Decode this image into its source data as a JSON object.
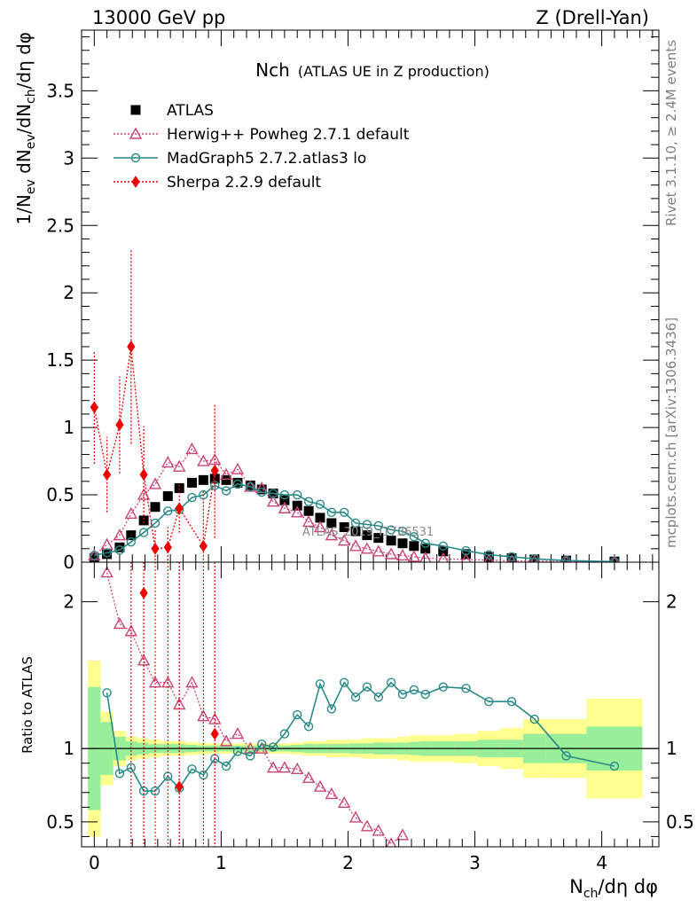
{
  "header": {
    "left": "13000 GeV pp",
    "right": "Z (Drell-Yan)"
  },
  "side_labels": {
    "rivet": "Rivet 3.1.10, ≥ 2.4M events",
    "mcplots": "mcplots.cern.ch [arXiv:1306.3436]"
  },
  "watermark": "ATLAS_2019_I1736531",
  "chart_data": [
    {
      "type": "scatter",
      "panel": "main",
      "title_main": "Nch",
      "title_sub": "(ATLAS UE in Z production)",
      "ylabel": "1/N_ev dN_ev/dN_ch/dη dφ",
      "xlim": [
        -0.1,
        4.45
      ],
      "ylim": [
        0,
        3.95
      ],
      "yticks": [
        0,
        0.5,
        1,
        1.5,
        2,
        2.5,
        3,
        3.5
      ],
      "ytick_labels": [
        "0",
        "0.5",
        "1",
        "1.5",
        "2",
        "2.5",
        "3",
        "3.5"
      ],
      "legend_position": "top-left",
      "series": [
        {
          "name": "ATLAS",
          "color": "#000000",
          "x": [
            0,
            0.1,
            0.2,
            0.29,
            0.39,
            0.48,
            0.58,
            0.67,
            0.77,
            0.86,
            0.95,
            1.04,
            1.13,
            1.23,
            1.32,
            1.41,
            1.5,
            1.6,
            1.69,
            1.78,
            1.87,
            1.97,
            2.06,
            2.15,
            2.24,
            2.34,
            2.43,
            2.52,
            2.61,
            2.75,
            2.93,
            3.11,
            3.29,
            3.47,
            3.72,
            4.1
          ],
          "y": [
            0.03,
            0.06,
            0.11,
            0.2,
            0.31,
            0.41,
            0.49,
            0.55,
            0.59,
            0.61,
            0.62,
            0.61,
            0.59,
            0.57,
            0.54,
            0.51,
            0.46,
            0.42,
            0.38,
            0.33,
            0.29,
            0.26,
            0.23,
            0.2,
            0.18,
            0.16,
            0.14,
            0.12,
            0.1,
            0.08,
            0.06,
            0.04,
            0.03,
            0.02,
            0.012,
            0.005
          ]
        },
        {
          "name": "Herwig++ Powheg 2.7.1 default",
          "color": "#cc4477",
          "x": [
            0,
            0.1,
            0.2,
            0.29,
            0.39,
            0.48,
            0.58,
            0.67,
            0.77,
            0.86,
            0.95,
            1.04,
            1.13,
            1.23,
            1.32,
            1.41,
            1.5,
            1.6,
            1.69,
            1.78,
            1.87,
            1.97,
            2.06,
            2.15,
            2.24,
            2.34,
            2.43,
            2.52,
            2.61,
            2.75,
            2.93,
            3.11,
            3.29,
            3.47,
            3.72,
            4.1
          ],
          "y": [
            0.05,
            0.13,
            0.2,
            0.36,
            0.5,
            0.58,
            0.74,
            0.71,
            0.84,
            0.75,
            0.76,
            0.65,
            0.69,
            0.56,
            0.55,
            0.45,
            0.4,
            0.37,
            0.3,
            0.26,
            0.2,
            0.16,
            0.12,
            0.1,
            0.08,
            0.06,
            0.05,
            0.04,
            0.03,
            0.025,
            0.02,
            0.015,
            0.01,
            0.008,
            0.005,
            0.002
          ]
        },
        {
          "name": "MadGraph5 2.7.2.atlas3 lo",
          "color": "#2a8a8a",
          "x": [
            0,
            0.1,
            0.2,
            0.29,
            0.39,
            0.48,
            0.58,
            0.67,
            0.77,
            0.86,
            0.95,
            1.04,
            1.13,
            1.23,
            1.32,
            1.41,
            1.5,
            1.6,
            1.69,
            1.78,
            1.87,
            1.97,
            2.06,
            2.15,
            2.24,
            2.34,
            2.43,
            2.52,
            2.61,
            2.75,
            2.93,
            3.11,
            3.29,
            3.47,
            3.72,
            4.1
          ],
          "y": [
            0.05,
            0.07,
            0.09,
            0.15,
            0.22,
            0.29,
            0.38,
            0.39,
            0.48,
            0.5,
            0.57,
            0.53,
            0.58,
            0.56,
            0.52,
            0.51,
            0.5,
            0.5,
            0.45,
            0.43,
            0.37,
            0.37,
            0.29,
            0.28,
            0.27,
            0.24,
            0.23,
            0.19,
            0.14,
            0.12,
            0.085,
            0.055,
            0.04,
            0.025,
            0.012,
            0.004
          ]
        },
        {
          "name": "Sherpa 2.2.9 default",
          "color": "#ee0000",
          "x": [
            0,
            0.1,
            0.2,
            0.29,
            0.39,
            0.48,
            0.58,
            0.67,
            0.86,
            0.95
          ],
          "y": [
            1.15,
            0.65,
            1.02,
            1.6,
            0.65,
            0.1,
            0.11,
            0.4,
            0.12,
            0.68
          ],
          "yerr": [
            0.42,
            0.28,
            0.36,
            0.72,
            0.36,
            0.14,
            0.15,
            0.18,
            0.42,
            0.5
          ]
        }
      ]
    },
    {
      "type": "line",
      "panel": "ratio",
      "ylabel": "Ratio to ATLAS",
      "xlabel": "N_ch/dη dφ",
      "xlim": [
        -0.1,
        4.45
      ],
      "ylim": [
        0.33,
        2.27
      ],
      "xticks": [
        0,
        1,
        2,
        3,
        4
      ],
      "xtick_labels": [
        "0",
        "1",
        "2",
        "3",
        "4"
      ],
      "yticks": [
        0.5,
        1,
        2
      ],
      "ytick_labels": [
        "0.5",
        "1",
        "2"
      ],
      "reference_line": 1,
      "uncertainty_bands": {
        "bin_edges": [
          -0.05,
          0.05,
          0.15,
          0.25,
          0.34,
          0.43,
          0.53,
          0.62,
          0.72,
          0.81,
          0.9,
          1.0,
          1.09,
          1.18,
          1.27,
          1.37,
          1.46,
          1.55,
          1.65,
          1.74,
          1.83,
          1.92,
          2.01,
          2.11,
          2.2,
          2.29,
          2.38,
          2.48,
          2.57,
          2.66,
          2.84,
          3.02,
          3.2,
          3.38,
          3.56,
          3.88,
          4.32
        ],
        "stat_syst_green": [
          0.42,
          0.18,
          0.08,
          0.05,
          0.04,
          0.03,
          0.03,
          0.03,
          0.025,
          0.02,
          0.02,
          0.02,
          0.02,
          0.02,
          0.02,
          0.02,
          0.02,
          0.025,
          0.03,
          0.03,
          0.03,
          0.03,
          0.035,
          0.035,
          0.04,
          0.04,
          0.04,
          0.045,
          0.05,
          0.05,
          0.05,
          0.06,
          0.06,
          0.1,
          0.1,
          0.15
        ],
        "total_yellow": [
          0.6,
          0.25,
          0.12,
          0.08,
          0.07,
          0.06,
          0.05,
          0.05,
          0.045,
          0.04,
          0.035,
          0.035,
          0.035,
          0.035,
          0.035,
          0.035,
          0.035,
          0.04,
          0.05,
          0.05,
          0.06,
          0.06,
          0.06,
          0.07,
          0.07,
          0.07,
          0.08,
          0.09,
          0.09,
          0.09,
          0.1,
          0.12,
          0.14,
          0.2,
          0.2,
          0.34
        ]
      },
      "series": [
        {
          "name": "Herwig++ Powheg 2.7.1 default",
          "color": "#cc4477",
          "x": [
            0.1,
            0.2,
            0.29,
            0.39,
            0.48,
            0.58,
            0.67,
            0.77,
            0.86,
            0.95,
            1.04,
            1.13,
            1.23,
            1.32,
            1.41,
            1.5,
            1.6,
            1.69,
            1.78,
            1.87,
            1.97,
            2.06,
            2.15,
            2.24,
            2.34,
            2.43
          ],
          "y": [
            2.2,
            1.85,
            1.8,
            1.6,
            1.45,
            1.45,
            1.3,
            1.45,
            1.22,
            1.2,
            1.05,
            1.1,
            1.0,
            1.0,
            0.87,
            0.87,
            0.86,
            0.8,
            0.74,
            0.69,
            0.63,
            0.53,
            0.47,
            0.44,
            0.35,
            0.41
          ]
        },
        {
          "name": "MadGraph5 2.7.2.atlas3 lo",
          "color": "#2a8a8a",
          "x": [
            0.1,
            0.2,
            0.29,
            0.39,
            0.48,
            0.58,
            0.67,
            0.77,
            0.86,
            0.95,
            1.04,
            1.13,
            1.23,
            1.32,
            1.41,
            1.5,
            1.6,
            1.69,
            1.78,
            1.87,
            1.97,
            2.06,
            2.15,
            2.24,
            2.34,
            2.43,
            2.52,
            2.61,
            2.75,
            2.93,
            3.11,
            3.29,
            3.47,
            3.72,
            4.1
          ],
          "y": [
            1.38,
            0.83,
            0.87,
            0.71,
            0.71,
            0.81,
            0.73,
            0.86,
            0.82,
            0.93,
            0.88,
            0.98,
            0.95,
            1.03,
            1.01,
            1.1,
            1.23,
            1.15,
            1.44,
            1.27,
            1.45,
            1.35,
            1.42,
            1.35,
            1.45,
            1.37,
            1.4,
            1.37,
            1.42,
            1.41,
            1.32,
            1.32,
            1.2,
            0.95,
            0.88
          ]
        },
        {
          "name": "Sherpa 2.2.9 default",
          "color": "#ee0000",
          "x": [
            0.39,
            0.67,
            0.95
          ],
          "y": [
            2.06,
            0.74,
            1.1
          ]
        }
      ]
    }
  ]
}
